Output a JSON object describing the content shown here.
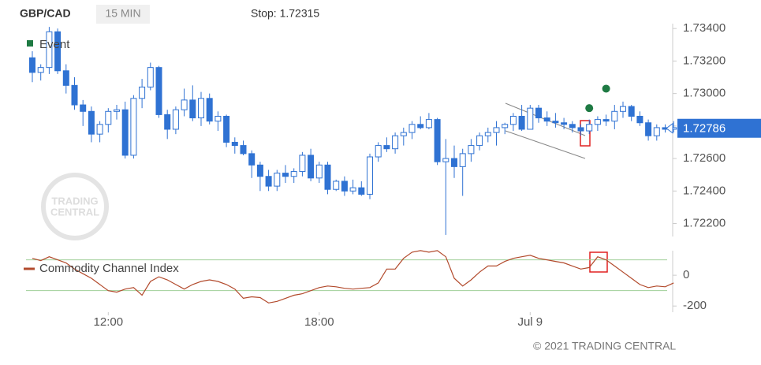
{
  "chart_data": {
    "type": "candlestick",
    "title": "GBP/CAD",
    "interval": "15 MIN",
    "stop_label": "Stop: 1.72315",
    "color": "#2f72d3",
    "categories": [
      null,
      null,
      null,
      null,
      null,
      null,
      null,
      null,
      null,
      "12:00",
      null,
      null,
      null,
      null,
      null,
      null,
      null,
      null,
      null,
      null,
      null,
      null,
      null,
      null,
      null,
      null,
      null,
      null,
      null,
      null,
      null,
      null,
      null,
      null,
      "18:00",
      null,
      null,
      null,
      null,
      null,
      null,
      null,
      null,
      null,
      null,
      null,
      null,
      null,
      null,
      null,
      null,
      null,
      null,
      null,
      null,
      null,
      null,
      null,
      null,
      "Jul 9",
      null,
      null,
      null,
      null,
      null,
      null,
      null,
      null,
      null,
      null,
      null,
      null,
      null,
      null,
      null,
      null,
      null
    ],
    "open": [
      1.7322,
      1.7313,
      1.7316,
      1.7338,
      1.7314,
      1.7305,
      1.7293,
      1.7289,
      1.7275,
      1.7281,
      1.7289,
      1.729,
      1.7262,
      1.7297,
      1.7304,
      1.7316,
      1.7287,
      1.7278,
      1.729,
      1.7296,
      1.7285,
      1.7297,
      1.7283,
      1.7286,
      1.727,
      1.7268,
      1.7263,
      1.7256,
      1.7249,
      1.7243,
      1.7251,
      1.7249,
      1.7252,
      1.7262,
      1.7248,
      1.7256,
      1.7241,
      1.7246,
      1.724,
      1.7242,
      1.7238,
      1.7261,
      1.7268,
      1.7266,
      1.7274,
      1.7276,
      1.7281,
      1.7279,
      1.7284,
      1.7258,
      1.726,
      1.7255,
      1.7263,
      1.7268,
      1.7274,
      1.7276,
      1.7279,
      1.7281,
      1.7286,
      1.7278,
      1.7291,
      1.7285,
      1.7283,
      1.7282,
      1.7281,
      1.7279,
      1.7277,
      1.7281,
      1.7284,
      1.7283,
      1.7289,
      1.7292,
      1.7286,
      1.7282,
      1.7274,
      1.7279,
      1.7278
    ],
    "high": [
      1.7326,
      1.7318,
      1.7341,
      1.734,
      1.7318,
      1.731,
      1.7296,
      1.7292,
      1.7283,
      1.7291,
      1.7293,
      1.7295,
      1.7299,
      1.7309,
      1.7319,
      1.7317,
      1.729,
      1.7292,
      1.7303,
      1.7305,
      1.7301,
      1.73,
      1.7289,
      1.7287,
      1.7273,
      1.7271,
      1.7265,
      1.7258,
      1.7253,
      1.7253,
      1.7256,
      1.7254,
      1.7264,
      1.7266,
      1.7258,
      1.7258,
      1.7247,
      1.7249,
      1.7247,
      1.7246,
      1.7263,
      1.727,
      1.7273,
      1.7276,
      1.7279,
      1.7283,
      1.7286,
      1.7288,
      1.7285,
      1.7272,
      1.7268,
      1.7266,
      1.7272,
      1.7276,
      1.7279,
      1.7283,
      1.7282,
      1.7288,
      1.7293,
      1.7293,
      1.7293,
      1.7289,
      1.7288,
      1.7285,
      1.7283,
      1.7281,
      1.7284,
      1.7286,
      1.7287,
      1.7293,
      1.7295,
      1.7293,
      1.7289,
      1.7284,
      1.7281,
      1.7281,
      1.7283
    ],
    "low": [
      1.7307,
      1.7308,
      1.7312,
      1.7312,
      1.73,
      1.729,
      1.728,
      1.727,
      1.727,
      1.7276,
      1.7284,
      1.726,
      1.726,
      1.7291,
      1.7302,
      1.7285,
      1.7272,
      1.7275,
      1.7286,
      1.7283,
      1.728,
      1.7281,
      1.7277,
      1.7267,
      1.7263,
      1.7262,
      1.7248,
      1.724,
      1.724,
      1.724,
      1.7245,
      1.7245,
      1.7249,
      1.7246,
      1.7245,
      1.7238,
      1.724,
      1.7237,
      1.7238,
      1.7237,
      1.7235,
      1.7258,
      1.7264,
      1.7263,
      1.7268,
      1.7272,
      1.7278,
      1.7278,
      1.7256,
      1.7213,
      1.7248,
      1.7237,
      1.7258,
      1.7265,
      1.727,
      1.7268,
      1.7275,
      1.7277,
      1.7277,
      1.7278,
      1.7282,
      1.728,
      1.7279,
      1.7278,
      1.7276,
      1.7274,
      1.7275,
      1.7277,
      1.728,
      1.7278,
      1.7285,
      1.7283,
      1.728,
      1.7271,
      1.7271,
      1.7276,
      1.7276
    ],
    "close": [
      1.7313,
      1.7316,
      1.7338,
      1.7314,
      1.7305,
      1.7293,
      1.7289,
      1.7275,
      1.7281,
      1.7289,
      1.729,
      1.7262,
      1.7297,
      1.7304,
      1.7316,
      1.7287,
      1.7278,
      1.729,
      1.7296,
      1.7285,
      1.7297,
      1.7283,
      1.7286,
      1.727,
      1.7268,
      1.7263,
      1.7256,
      1.7249,
      1.7243,
      1.7251,
      1.7249,
      1.7252,
      1.7262,
      1.7248,
      1.7256,
      1.7241,
      1.7246,
      1.724,
      1.7242,
      1.7238,
      1.7261,
      1.7268,
      1.7266,
      1.7274,
      1.7276,
      1.7281,
      1.7279,
      1.7284,
      1.7258,
      1.726,
      1.7255,
      1.7263,
      1.7268,
      1.7274,
      1.7276,
      1.7279,
      1.7281,
      1.7286,
      1.7278,
      1.7291,
      1.7285,
      1.7283,
      1.7282,
      1.7281,
      1.7279,
      1.7277,
      1.7281,
      1.7284,
      1.7283,
      1.7289,
      1.7292,
      1.7286,
      1.7282,
      1.7274,
      1.7279,
      1.7278,
      1.7279
    ],
    "ylim": [
      1.7212,
      1.7343
    ],
    "yticks": [
      {
        "value": 1.734,
        "label": "1.73400"
      },
      {
        "value": 1.732,
        "label": "1.73200"
      },
      {
        "value": 1.73,
        "label": "1.73000"
      },
      {
        "value": 1.728,
        "label": "1.72800"
      },
      {
        "value": 1.726,
        "label": "1.72600"
      },
      {
        "value": 1.724,
        "label": "1.72400"
      },
      {
        "value": 1.722,
        "label": "1.72200"
      }
    ],
    "last_price": 1.72786,
    "events": {
      "name": "Event",
      "color": "#1e7a43",
      "points": [
        {
          "index": 66,
          "value": 1.7291
        },
        {
          "index": 68,
          "value": 1.7303
        }
      ]
    },
    "cci": {
      "name": "Commodity Channel Index",
      "color": "#b24a2c",
      "values": [
        110,
        95,
        120,
        100,
        80,
        40,
        10,
        -20,
        -60,
        -100,
        -110,
        -90,
        -80,
        -130,
        -40,
        -10,
        -30,
        -60,
        -90,
        -60,
        -40,
        -30,
        -40,
        -60,
        -90,
        -150,
        -140,
        -145,
        -180,
        -170,
        -150,
        -130,
        -120,
        -100,
        -80,
        -70,
        -75,
        -85,
        -90,
        -85,
        -80,
        -50,
        40,
        40,
        110,
        150,
        160,
        150,
        160,
        120,
        -20,
        -70,
        -30,
        20,
        60,
        60,
        90,
        110,
        120,
        130,
        110,
        100,
        90,
        80,
        60,
        40,
        50,
        120,
        100,
        60,
        20,
        -20,
        -60,
        -80,
        -70,
        -75,
        -50
      ],
      "ylim": [
        -240,
        180
      ],
      "yticks": [
        0,
        -200
      ],
      "bands": [
        100,
        -100
      ]
    },
    "watermark": [
      "TRADING",
      "CENTRAL"
    ],
    "copyright": "© 2021 TRADING CENTRAL"
  }
}
